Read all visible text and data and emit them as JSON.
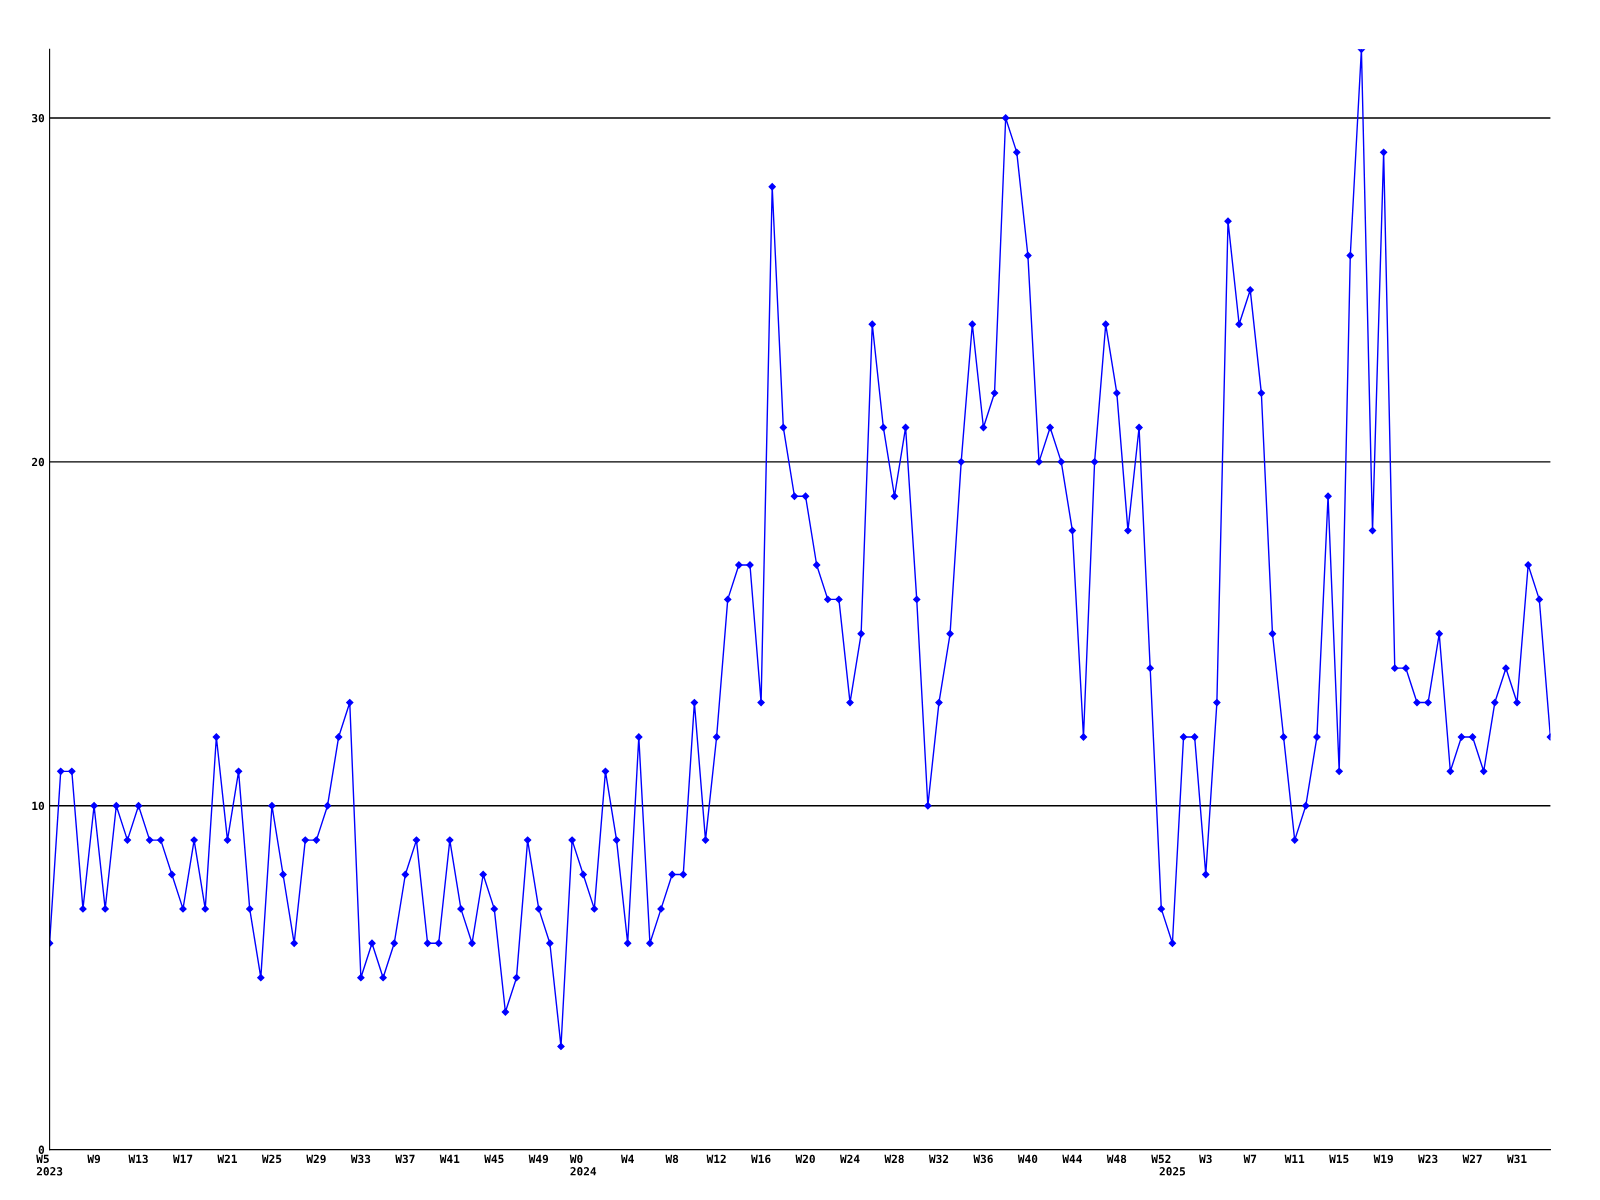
{
  "chart_data": {
    "type": "line",
    "categories": [
      "W5\n2023",
      null,
      null,
      null,
      "W9",
      null,
      null,
      null,
      "W13",
      null,
      null,
      null,
      "W17",
      null,
      null,
      null,
      "W21",
      null,
      null,
      null,
      "W25",
      null,
      null,
      null,
      "W29",
      null,
      null,
      null,
      "W33",
      null,
      null,
      null,
      "W37",
      null,
      null,
      null,
      "W41",
      null,
      null,
      null,
      "W45",
      null,
      null,
      null,
      "W49",
      null,
      null,
      null,
      "W0\n2024",
      null,
      null,
      null,
      "W4",
      null,
      null,
      null,
      "W8",
      null,
      null,
      null,
      "W12",
      null,
      null,
      null,
      "W16",
      null,
      null,
      null,
      "W20",
      null,
      null,
      null,
      "W24",
      null,
      null,
      null,
      "W28",
      null,
      null,
      null,
      "W32",
      null,
      null,
      null,
      "W36",
      null,
      null,
      null,
      "W40",
      null,
      null,
      null,
      "W44",
      null,
      null,
      null,
      "W48",
      null,
      null,
      null,
      "W52",
      "\n2025",
      null,
      null,
      "W3",
      null,
      null,
      null,
      "W7",
      null,
      null,
      null,
      "W11",
      null,
      null,
      null,
      "W15",
      null,
      null,
      null,
      "W19",
      null,
      null,
      null,
      "W23",
      null,
      null,
      null,
      "W27",
      null,
      null,
      null,
      "W31",
      null,
      null,
      null
    ],
    "series": [
      {
        "color": "#0000ff",
        "values": [
          6,
          11,
          11,
          7,
          10,
          7,
          10,
          9,
          10,
          9,
          9,
          8,
          7,
          9,
          7,
          12,
          9,
          11,
          7,
          5,
          10,
          8,
          6,
          9,
          9,
          10,
          12,
          13,
          5,
          6,
          5,
          6,
          8,
          9,
          6,
          6,
          9,
          7,
          6,
          8,
          7,
          4,
          5,
          9,
          7,
          6,
          3,
          9,
          8,
          7,
          11,
          9,
          6,
          12,
          6,
          7,
          8,
          8,
          13,
          9,
          12,
          16,
          17,
          17,
          13,
          28,
          21,
          19,
          19,
          17,
          16,
          16,
          13,
          15,
          24,
          21,
          19,
          21,
          16,
          10,
          13,
          15,
          20,
          24,
          21,
          22,
          30,
          29,
          26,
          20,
          21,
          20,
          18,
          12,
          20,
          24,
          22,
          18,
          21,
          14,
          7,
          6,
          12,
          12,
          8,
          13,
          27,
          24,
          25,
          22,
          15,
          12,
          9,
          10,
          12,
          19,
          11,
          26,
          32,
          18,
          29,
          14,
          14,
          13,
          13,
          15,
          11,
          12,
          12,
          11,
          13,
          14,
          13,
          17,
          16,
          12
        ]
      }
    ],
    "ylim": [
      0,
      32
    ],
    "yticks": [
      0,
      10,
      20,
      30
    ],
    "grid": "y",
    "marker": "diamond",
    "line_style": "solid"
  }
}
